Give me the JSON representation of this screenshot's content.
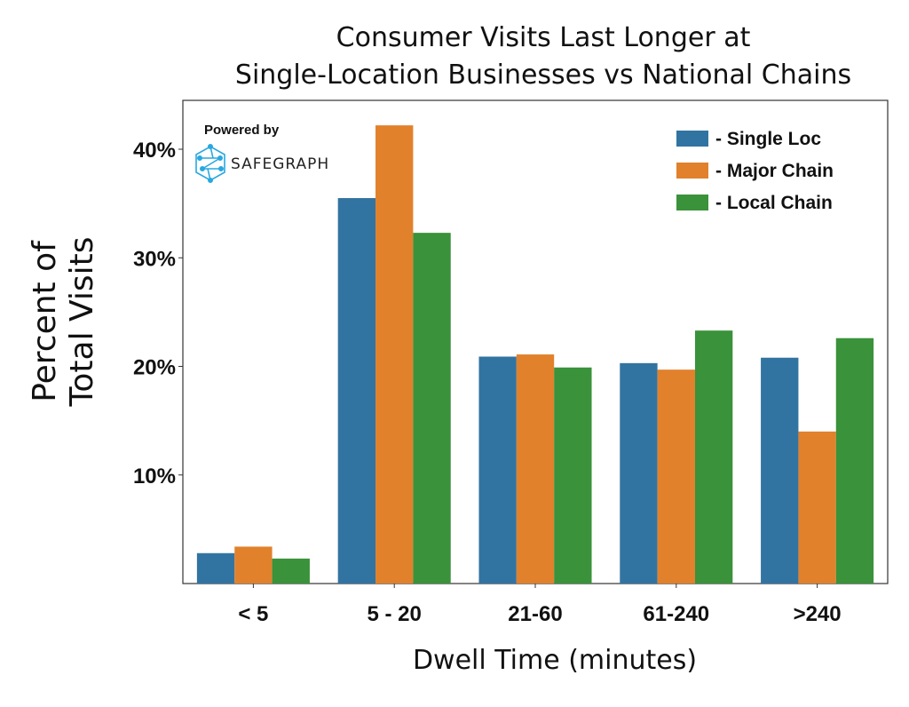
{
  "chart_data": {
    "type": "bar",
    "title_line1": "Consumer Visits Last Longer at",
    "title_line2": "Single-Location Businesses vs National Chains",
    "ylabel_line1": "Percent of",
    "ylabel_line2": "Total Visits",
    "xlabel": "Dwell Time (minutes)",
    "categories": [
      "< 5",
      "5 - 20",
      "21-60",
      "61-240",
      ">240"
    ],
    "series": [
      {
        "name": "- Single Loc",
        "color": "#3274a1",
        "values": [
          2.8,
          35.5,
          20.9,
          20.3,
          20.8
        ]
      },
      {
        "name": "- Major Chain",
        "color": "#e1812c",
        "values": [
          3.4,
          42.2,
          21.1,
          19.7,
          14.0
        ]
      },
      {
        "name": "- Local Chain",
        "color": "#3a923a",
        "values": [
          2.3,
          32.3,
          19.9,
          23.3,
          22.6
        ]
      }
    ],
    "yticks": [
      {
        "value": 10,
        "label": "10%"
      },
      {
        "value": 20,
        "label": "20%"
      },
      {
        "value": 30,
        "label": "30%"
      },
      {
        "value": 40,
        "label": "40%"
      }
    ],
    "ylim": [
      0,
      44.5
    ],
    "grid": false,
    "legend_position": "top-right"
  },
  "watermark": {
    "powered_by": "Powered by",
    "brand": "SAFEGRAPH",
    "icon": "safegraph-logo-icon",
    "icon_color": "#29a8e0"
  }
}
